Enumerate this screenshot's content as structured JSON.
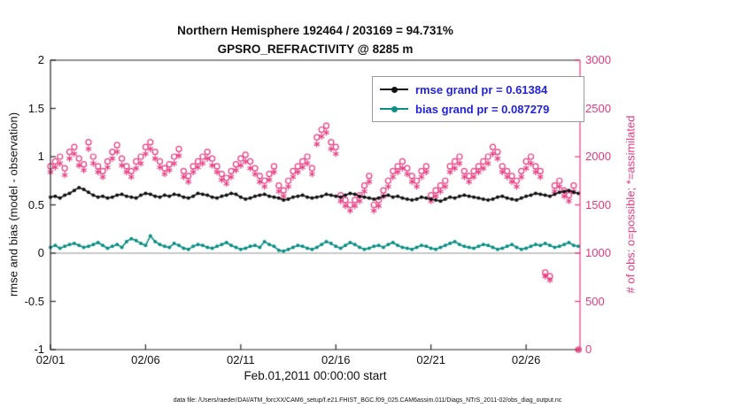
{
  "figure": {
    "title_line1": "Northern Hemisphere 192464 / 203169 = 94.731%",
    "title_line2": "GPSRO_REFRACTIVITY @ 8285 m",
    "caption": "data file: /Users/raeder/DAI/ATM_forcXX/CAM6_setup/f.e21.FHIST_BGC.f09_025.CAM6assim.011/Diags_NTrS_2011-02/obs_diag_output.nc"
  },
  "chart_data": {
    "type": "line+scatter",
    "title": "Northern Hemisphere 192464 / 203169 = 94.731%",
    "subtitle": "GPSRO_REFRACTIVITY @ 8285 m",
    "grid": "zero-line-only",
    "legend_position": "top-right-inside",
    "legend_text_color": "#2222dd",
    "zero_line_color": "#c9c9c9",
    "axis_color": "#262626",
    "x_axis": {
      "label": "Feb.01,2011 00:00:00 start",
      "lim": [
        1,
        28.8333
      ],
      "tick_values": [
        1,
        6,
        11,
        16,
        21,
        26
      ],
      "tick_labels": [
        "02/01",
        "02/06",
        "02/11",
        "02/16",
        "02/21",
        "02/26"
      ]
    },
    "left_axis": {
      "label": "rmse and bias (model - observation)",
      "lim": [
        -1,
        2
      ],
      "tick_values": [
        -1,
        -0.5,
        0,
        0.5,
        1,
        1.5,
        2
      ],
      "tick_labels": [
        "-1",
        "-0.5",
        "0",
        "0.5",
        "1",
        "1.5",
        "2"
      ]
    },
    "right_axis": {
      "label": "# of obs: o=possible; *=assimilated",
      "lim": [
        0,
        3000
      ],
      "color": "#e8397f",
      "tick_values": [
        0,
        500,
        1000,
        1500,
        2000,
        2500,
        3000
      ],
      "tick_labels": [
        "0",
        "500",
        "1000",
        "1500",
        "2000",
        "2500",
        "3000"
      ]
    },
    "x_start": 1,
    "x_step": 0.25,
    "series": [
      {
        "name": "rmse",
        "axis": "left",
        "color": "#111111",
        "marker": "dot",
        "legend": "rmse grand pr = 0.61384",
        "values": [
          0.58,
          0.59,
          0.57,
          0.6,
          0.62,
          0.65,
          0.68,
          0.66,
          0.63,
          0.6,
          0.58,
          0.59,
          0.57,
          0.58,
          0.6,
          0.61,
          0.59,
          0.58,
          0.57,
          0.6,
          0.62,
          0.61,
          0.59,
          0.58,
          0.6,
          0.59,
          0.61,
          0.6,
          0.58,
          0.57,
          0.59,
          0.62,
          0.61,
          0.6,
          0.58,
          0.57,
          0.59,
          0.6,
          0.62,
          0.61,
          0.58,
          0.56,
          0.57,
          0.59,
          0.6,
          0.61,
          0.59,
          0.58,
          0.57,
          0.55,
          0.56,
          0.58,
          0.59,
          0.6,
          0.58,
          0.57,
          0.58,
          0.59,
          0.61,
          0.6,
          0.59,
          0.58,
          0.6,
          0.62,
          0.61,
          0.59,
          0.58,
          0.57,
          0.56,
          0.57,
          0.59,
          0.6,
          0.58,
          0.59,
          0.57,
          0.56,
          0.55,
          0.56,
          0.58,
          0.57,
          0.56,
          0.55,
          0.54,
          0.56,
          0.58,
          0.57,
          0.59,
          0.6,
          0.59,
          0.58,
          0.57,
          0.56,
          0.55,
          0.56,
          0.58,
          0.59,
          0.57,
          0.56,
          0.55,
          0.57,
          0.59,
          0.6,
          0.62,
          0.61,
          0.6,
          0.59,
          0.61,
          0.63,
          0.64,
          0.65,
          0.63,
          0.62
        ]
      },
      {
        "name": "bias",
        "axis": "left",
        "color": "#0b8f84",
        "marker": "dot",
        "legend": "bias grand pr = 0.087279",
        "values": [
          0.06,
          0.08,
          0.05,
          0.07,
          0.09,
          0.1,
          0.08,
          0.06,
          0.07,
          0.09,
          0.11,
          0.08,
          0.05,
          0.07,
          0.09,
          0.06,
          0.12,
          0.15,
          0.13,
          0.1,
          0.08,
          0.18,
          0.12,
          0.09,
          0.07,
          0.06,
          0.1,
          0.08,
          0.05,
          0.04,
          0.07,
          0.09,
          0.08,
          0.06,
          0.05,
          0.07,
          0.09,
          0.11,
          0.08,
          0.06,
          0.04,
          0.05,
          0.07,
          0.08,
          0.06,
          0.12,
          0.09,
          0.07,
          0.03,
          0.02,
          0.04,
          0.06,
          0.08,
          0.07,
          0.05,
          0.04,
          0.06,
          0.09,
          0.12,
          0.1,
          0.07,
          0.05,
          0.08,
          0.11,
          0.09,
          0.06,
          0.04,
          0.05,
          0.07,
          0.08,
          0.06,
          0.09,
          0.11,
          0.08,
          0.06,
          0.05,
          0.04,
          0.06,
          0.08,
          0.07,
          0.05,
          0.04,
          0.06,
          0.08,
          0.1,
          0.12,
          0.09,
          0.07,
          0.06,
          0.05,
          0.07,
          0.09,
          0.08,
          0.06,
          0.04,
          0.05,
          0.07,
          0.09,
          0.06,
          0.04,
          0.05,
          0.07,
          0.09,
          0.08,
          0.1,
          0.08,
          0.06,
          0.07,
          0.09,
          0.11,
          0.08,
          0.07
        ]
      },
      {
        "name": "possible",
        "axis": "right",
        "color": "#e8397f",
        "marker": "circle",
        "legend": "o=possible",
        "values": [
          1900,
          1950,
          2000,
          1880,
          2050,
          2100,
          1980,
          1920,
          2150,
          2000,
          1900,
          1850,
          1950,
          2050,
          2120,
          1980,
          1900,
          1850,
          1950,
          2000,
          2100,
          2150,
          2050,
          1950,
          1880,
          1920,
          2000,
          2080,
          1850,
          1800,
          1900,
          1950,
          2000,
          2050,
          1980,
          1900,
          1820,
          1780,
          1850,
          1920,
          1980,
          2020,
          1950,
          1880,
          1800,
          1750,
          1820,
          1900,
          1700,
          1650,
          1750,
          1850,
          1900,
          1950,
          2000,
          1880,
          2200,
          2280,
          2320,
          2150,
          2100,
          1600,
          1550,
          1500,
          1550,
          1600,
          1700,
          1800,
          1500,
          1550,
          1650,
          1750,
          1850,
          1900,
          1950,
          1880,
          1800,
          1750,
          1850,
          1900,
          1600,
          1650,
          1700,
          1750,
          1900,
          1950,
          2000,
          1850,
          1800,
          1850,
          1900,
          1950,
          2000,
          2100,
          2050,
          1900,
          1850,
          1800,
          1750,
          1850,
          1950,
          2000,
          1900,
          1850,
          800,
          760,
          1700,
          1750,
          1650,
          1600,
          1700,
          0
        ]
      },
      {
        "name": "assimilated",
        "axis": "right",
        "color": "#e8397f",
        "marker": "asterisk",
        "legend": "*=assimilated",
        "values": [
          1840,
          1890,
          1930,
          1810,
          1980,
          2030,
          1910,
          1860,
          2080,
          1930,
          1840,
          1790,
          1890,
          1980,
          2050,
          1910,
          1840,
          1790,
          1880,
          1930,
          2030,
          2080,
          1980,
          1890,
          1820,
          1860,
          1930,
          2010,
          1790,
          1740,
          1840,
          1890,
          1930,
          1980,
          1910,
          1840,
          1760,
          1720,
          1790,
          1860,
          1910,
          1950,
          1880,
          1820,
          1740,
          1690,
          1760,
          1840,
          1640,
          1590,
          1690,
          1790,
          1840,
          1890,
          1930,
          1820,
          2130,
          2210,
          2250,
          2080,
          2030,
          1540,
          1490,
          1440,
          1490,
          1540,
          1640,
          1740,
          1440,
          1490,
          1590,
          1690,
          1790,
          1840,
          1880,
          1820,
          1740,
          1690,
          1790,
          1840,
          1540,
          1590,
          1640,
          1690,
          1840,
          1880,
          1930,
          1790,
          1740,
          1790,
          1840,
          1880,
          1930,
          2030,
          1980,
          1840,
          1790,
          1740,
          1690,
          1790,
          1880,
          1930,
          1840,
          1790,
          760,
          720,
          1640,
          1690,
          1590,
          1540,
          1640,
          0
        ]
      }
    ]
  }
}
